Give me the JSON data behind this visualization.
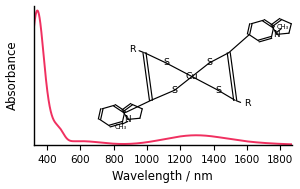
{
  "xlabel": "Wavelength / nm",
  "ylabel": "Absorbance",
  "xlim": [
    320,
    1870
  ],
  "ylim": [
    0,
    1.12
  ],
  "xticks": [
    400,
    600,
    800,
    1000,
    1200,
    1400,
    1600,
    1800
  ],
  "line_color": "#F03060",
  "background_color": "#ffffff",
  "xlabel_fontsize": 8.5,
  "ylabel_fontsize": 8.5,
  "tick_fontsize": 7.5,
  "struct_color": "#404040"
}
